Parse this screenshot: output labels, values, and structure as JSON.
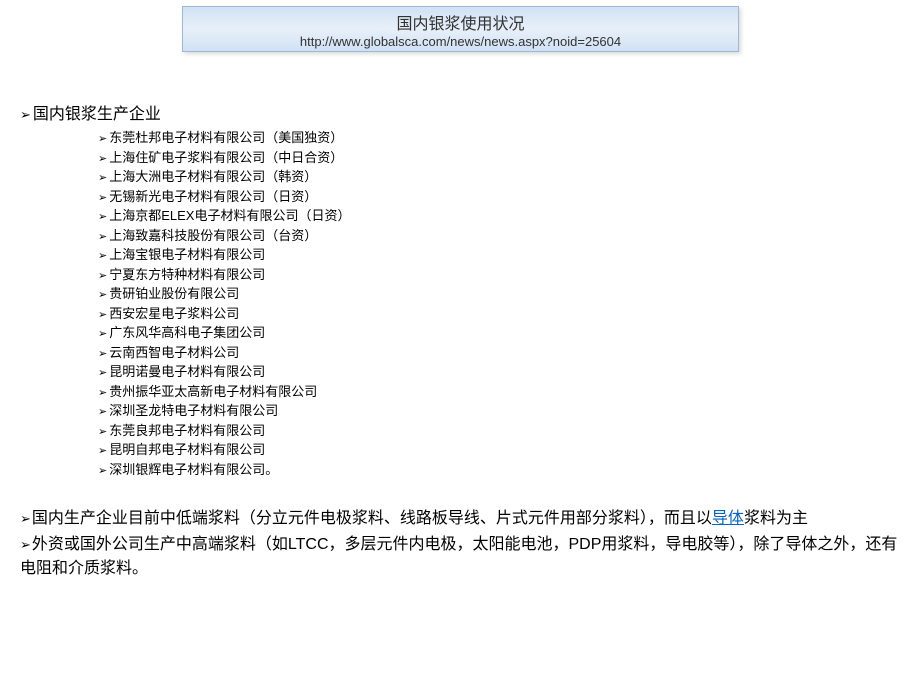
{
  "header": {
    "title": "国内银浆使用状况",
    "url": "http://www.globalsca.com/news/news.aspx?noid=25604"
  },
  "section1": {
    "title": "国内银浆生产企业",
    "companies": [
      "东莞杜邦电子材料有限公司（美国独资）",
      "上海住矿电子浆料有限公司（中日合资）",
      "上海大洲电子材料有限公司（韩资）",
      "无锡新光电子材料有限公司（日资）",
      "上海京都ELEX电子材料有限公司（日资）",
      "上海致嘉科技股份有限公司（台资）",
      "上海宝银电子材料有限公司",
      "宁夏东方特种材料有限公司",
      "贵研铂业股份有限公司",
      "西安宏星电子浆料公司",
      "广东风华高科电子集团公司",
      "云南西智电子材料公司",
      "昆明诺曼电子材料有限公司",
      "贵州振华亚太高新电子材料有限公司",
      "深圳圣龙特电子材料有限公司",
      "东莞良邦电子材料有限公司",
      "昆明自邦电子材料有限公司",
      "深圳银辉电子材料有限公司。"
    ]
  },
  "paragraphs": {
    "p1_before": "国内生产企业目前中低端浆料（分立元件电极浆料、线路板导线、片式元件用部分浆料），而且以",
    "p1_link": "导体",
    "p1_after": "浆料为主",
    "p2": "外资或国外公司生产中高端浆料（如LTCC，多层元件内电极，太阳能电池，PDP用浆料，导电胶等），除了导体之外，还有电阻和介质浆料。"
  },
  "styling": {
    "header_bg_gradient_top": "#d0e1f4",
    "header_bg_gradient_mid": "#e8f0f9",
    "header_bg_gradient_bottom": "#d0e1f4",
    "header_border": "#9db9d6",
    "body_bg": "#ffffff",
    "text_color": "#000000",
    "link_color": "#0563c1",
    "title_fontsize": 16,
    "url_fontsize": 13,
    "section_title_fontsize": 16,
    "company_fontsize": 13,
    "paragraph_fontsize": 16
  }
}
